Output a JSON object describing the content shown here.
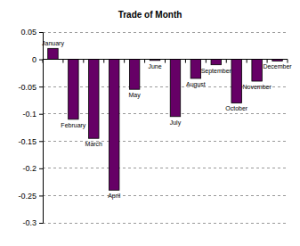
{
  "chart_data": {
    "type": "bar",
    "title": "Trade of Month",
    "categories": [
      "January",
      "February",
      "March",
      "April",
      "May",
      "June",
      "July",
      "August",
      "September",
      "October",
      "November",
      "December"
    ],
    "values": [
      0.02,
      -0.11,
      -0.145,
      -0.24,
      -0.055,
      -0.002,
      -0.105,
      -0.035,
      -0.01,
      -0.08,
      -0.04,
      -0.003
    ],
    "color": "#660066",
    "ylim": [
      -0.3,
      0.05
    ],
    "yticks": [
      0.05,
      0,
      -0.05,
      -0.1,
      -0.15,
      -0.2,
      -0.25,
      -0.3
    ],
    "grid": true,
    "tick_labels": "y"
  }
}
